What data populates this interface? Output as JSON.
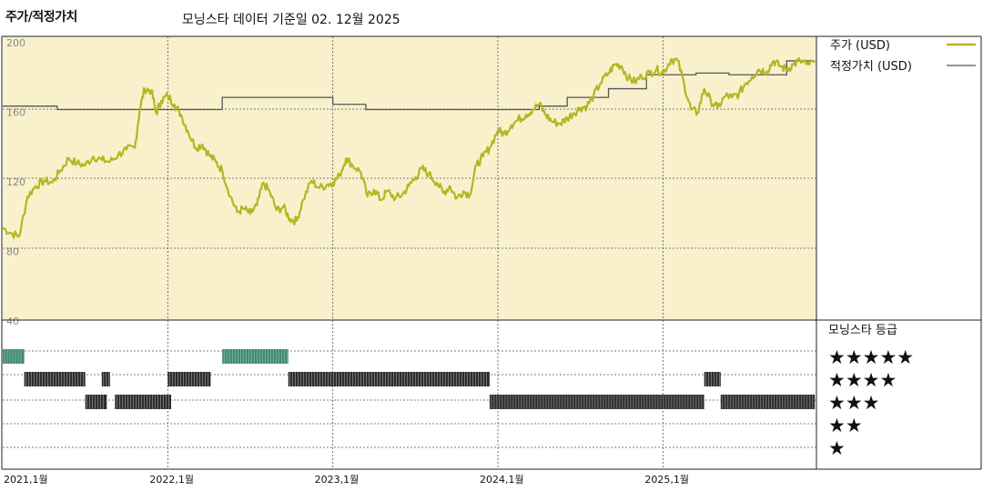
{
  "header": {
    "title": "주가/적정가치",
    "subtitle": "모닝스타 데이터 기준일 02. 12월 2025"
  },
  "chart_data": {
    "type": "line",
    "xlabels": [
      "2021,1월",
      "2022,1월",
      "2023,1월",
      "2024,1월",
      "2025,1월"
    ],
    "ylabels": [
      "200",
      "160",
      "120",
      "80",
      "40"
    ],
    "ylim": [
      40,
      200
    ],
    "grid": true,
    "legend_position": "right",
    "colors": {
      "price": "#b4b624",
      "fair_value": "#555555",
      "price_background": "#f8f1cc",
      "five_star": "#3c8a6e",
      "other_stars": "#2e2e2e"
    },
    "series": [
      {
        "name": "주가 (USD)",
        "points": [
          [
            2021.0,
            92
          ],
          [
            2021.05,
            89
          ],
          [
            2021.1,
            87
          ],
          [
            2021.15,
            110
          ],
          [
            2021.2,
            116
          ],
          [
            2021.25,
            119
          ],
          [
            2021.3,
            118
          ],
          [
            2021.35,
            125
          ],
          [
            2021.4,
            132
          ],
          [
            2021.45,
            129
          ],
          [
            2021.5,
            128
          ],
          [
            2021.55,
            133
          ],
          [
            2021.6,
            131
          ],
          [
            2021.65,
            130
          ],
          [
            2021.7,
            134
          ],
          [
            2021.75,
            137
          ],
          [
            2021.8,
            138
          ],
          [
            2021.83,
            160
          ],
          [
            2021.86,
            172
          ],
          [
            2021.9,
            171
          ],
          [
            2021.93,
            158
          ],
          [
            2021.96,
            165
          ],
          [
            2022.0,
            168
          ],
          [
            2022.04,
            163
          ],
          [
            2022.08,
            157
          ],
          [
            2022.12,
            148
          ],
          [
            2022.17,
            138
          ],
          [
            2022.21,
            140
          ],
          [
            2022.25,
            134
          ],
          [
            2022.29,
            130
          ],
          [
            2022.33,
            125
          ],
          [
            2022.38,
            110
          ],
          [
            2022.42,
            101
          ],
          [
            2022.46,
            103
          ],
          [
            2022.5,
            100
          ],
          [
            2022.54,
            105
          ],
          [
            2022.58,
            118
          ],
          [
            2022.62,
            112
          ],
          [
            2022.66,
            102
          ],
          [
            2022.7,
            104
          ],
          [
            2022.74,
            97
          ],
          [
            2022.78,
            96
          ],
          [
            2022.82,
            108
          ],
          [
            2022.87,
            119
          ],
          [
            2022.92,
            115
          ],
          [
            2022.97,
            117
          ],
          [
            2023.0,
            118
          ],
          [
            2023.04,
            122
          ],
          [
            2023.08,
            132
          ],
          [
            2023.12,
            128
          ],
          [
            2023.17,
            124
          ],
          [
            2023.21,
            110
          ],
          [
            2023.25,
            114
          ],
          [
            2023.29,
            108
          ],
          [
            2023.33,
            113
          ],
          [
            2023.38,
            109
          ],
          [
            2023.42,
            111
          ],
          [
            2023.46,
            116
          ],
          [
            2023.5,
            121
          ],
          [
            2023.54,
            126
          ],
          [
            2023.58,
            123
          ],
          [
            2023.63,
            118
          ],
          [
            2023.67,
            112
          ],
          [
            2023.71,
            116
          ],
          [
            2023.75,
            109
          ],
          [
            2023.79,
            113
          ],
          [
            2023.83,
            111
          ],
          [
            2023.87,
            128
          ],
          [
            2023.91,
            133
          ],
          [
            2023.95,
            138
          ],
          [
            2024.0,
            148
          ],
          [
            2024.04,
            146
          ],
          [
            2024.08,
            151
          ],
          [
            2024.12,
            154
          ],
          [
            2024.17,
            157
          ],
          [
            2024.21,
            160
          ],
          [
            2024.25,
            163
          ],
          [
            2024.29,
            157
          ],
          [
            2024.33,
            153
          ],
          [
            2024.38,
            152
          ],
          [
            2024.42,
            155
          ],
          [
            2024.46,
            158
          ],
          [
            2024.5,
            161
          ],
          [
            2024.54,
            162
          ],
          [
            2024.58,
            168
          ],
          [
            2024.62,
            175
          ],
          [
            2024.67,
            181
          ],
          [
            2024.71,
            186
          ],
          [
            2024.75,
            185
          ],
          [
            2024.79,
            178
          ],
          [
            2024.83,
            176
          ],
          [
            2024.87,
            179
          ],
          [
            2024.92,
            181
          ],
          [
            2024.96,
            183
          ],
          [
            2025.0,
            181
          ],
          [
            2025.05,
            189
          ],
          [
            2025.09,
            188
          ],
          [
            2025.13,
            174
          ],
          [
            2025.17,
            160
          ],
          [
            2025.21,
            158
          ],
          [
            2025.25,
            172
          ],
          [
            2025.29,
            165
          ],
          [
            2025.33,
            161
          ],
          [
            2025.38,
            168
          ],
          [
            2025.42,
            167
          ],
          [
            2025.46,
            169
          ],
          [
            2025.5,
            175
          ],
          [
            2025.54,
            179
          ],
          [
            2025.58,
            183
          ],
          [
            2025.63,
            182
          ],
          [
            2025.67,
            188
          ],
          [
            2025.71,
            185
          ],
          [
            2025.75,
            183
          ],
          [
            2025.79,
            186
          ],
          [
            2025.83,
            188
          ],
          [
            2025.87,
            186
          ],
          [
            2025.92,
            187
          ]
        ]
      },
      {
        "name": "적정가치 (USD)",
        "points": [
          [
            2021.0,
            162
          ],
          [
            2021.33,
            160
          ],
          [
            2022.0,
            160
          ],
          [
            2022.33,
            167
          ],
          [
            2022.92,
            167
          ],
          [
            2023.0,
            163
          ],
          [
            2023.2,
            160
          ],
          [
            2024.08,
            160
          ],
          [
            2024.25,
            162
          ],
          [
            2024.42,
            167
          ],
          [
            2024.67,
            172
          ],
          [
            2024.9,
            180
          ],
          [
            2025.2,
            181
          ],
          [
            2025.4,
            180
          ],
          [
            2025.7,
            180
          ],
          [
            2025.75,
            188
          ],
          [
            2025.92,
            188
          ]
        ]
      }
    ],
    "rating_label": "모닝스타 등급",
    "ratings": [
      {
        "stars": 5,
        "label": "★★★★★",
        "periods": [
          [
            2021.0,
            2021.13
          ],
          [
            2022.33,
            2022.73
          ]
        ]
      },
      {
        "stars": 4,
        "label": "★★★★",
        "periods": [
          [
            2021.13,
            2021.5
          ],
          [
            2021.6,
            2021.65
          ],
          [
            2022.0,
            2022.26
          ],
          [
            2022.73,
            2023.95
          ],
          [
            2025.25,
            2025.35
          ]
        ]
      },
      {
        "stars": 3,
        "label": "★★★",
        "periods": [
          [
            2021.5,
            2021.63
          ],
          [
            2021.68,
            2022.02
          ],
          [
            2023.95,
            2025.25
          ],
          [
            2025.35,
            2025.92
          ]
        ]
      },
      {
        "stars": 2,
        "label": "★★",
        "periods": []
      },
      {
        "stars": 1,
        "label": "★",
        "periods": []
      }
    ]
  }
}
